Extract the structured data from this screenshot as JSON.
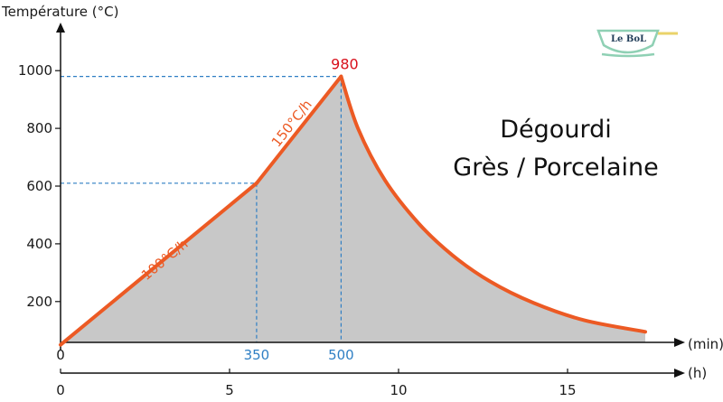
{
  "chart_data": {
    "type": "area",
    "title_lines": [
      "Dégourdi",
      "Grès / Porcelaine"
    ],
    "ylabel": "Température (°C)",
    "xlabel": "(min)",
    "x2label": "(h)",
    "ylim": [
      50,
      1100
    ],
    "xlim_hours": [
      0,
      19
    ],
    "y_ticks": [
      1000,
      800,
      600,
      400,
      200
    ],
    "h_ticks": [
      0,
      5,
      10,
      15
    ],
    "min_axis_zero": "0",
    "segments": [
      {
        "label": "100°C/h",
        "start": {
          "h": 0,
          "temp": 50
        },
        "end": {
          "h": 5.8,
          "temp": 610
        }
      },
      {
        "label": "150°C/h",
        "start": {
          "h": 5.8,
          "temp": 610
        },
        "end": {
          "h": 8.3,
          "temp": 980
        }
      }
    ],
    "peak": {
      "label": "980",
      "h": 8.3,
      "temp": 980
    },
    "cooling_curve": [
      {
        "h": 8.3,
        "temp": 980
      },
      {
        "h": 8.8,
        "temp": 800
      },
      {
        "h": 9.6,
        "temp": 620
      },
      {
        "h": 10.6,
        "temp": 470
      },
      {
        "h": 11.6,
        "temp": 360
      },
      {
        "h": 12.7,
        "temp": 270
      },
      {
        "h": 14.0,
        "temp": 195
      },
      {
        "h": 15.5,
        "temp": 135
      },
      {
        "h": 17.3,
        "temp": 95
      }
    ],
    "markers": [
      {
        "label": "350",
        "h": 5.8,
        "temp": 610
      },
      {
        "label": "500",
        "h": 8.3,
        "temp": 980
      }
    ],
    "colors": {
      "curve": "#ec5a24",
      "fill": "#c8c8c8",
      "guides": "#2f7fc4",
      "peak_label": "#d8101c",
      "axis": "#111111"
    }
  },
  "logo": {
    "text": "Le BoL"
  }
}
